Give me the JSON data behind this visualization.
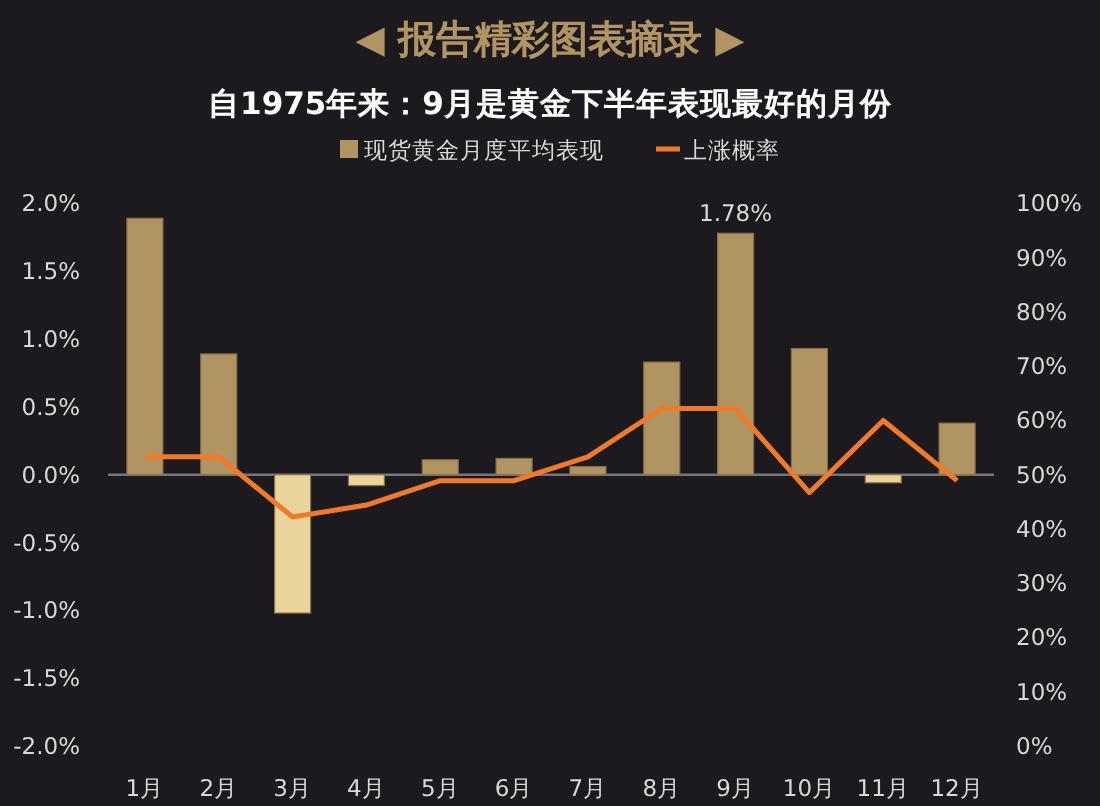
{
  "chart_data": {
    "type": "bar",
    "title": "◀ 报告精彩图表摘录 ▶",
    "subtitle": "自1975年来：9月是黄金下半年表现最好的月份",
    "categories": [
      "1月",
      "2月",
      "3月",
      "4月",
      "5月",
      "6月",
      "7月",
      "8月",
      "9月",
      "10月",
      "11月",
      "12月"
    ],
    "series": [
      {
        "name": "现货黄金月度平均表现",
        "color": "#b09462",
        "colors": [
          "#b09462",
          "#b09462",
          "#e9d59c",
          "#e9d59c",
          "#b09462",
          "#b09462",
          "#b09462",
          "#b09462",
          "#b09462",
          "#b09462",
          "#e9d59c",
          "#b09462"
        ],
        "values": [
          1.89,
          0.89,
          -1.02,
          -0.08,
          0.11,
          0.12,
          0.06,
          0.83,
          1.78,
          0.93,
          -0.06,
          0.38
        ],
        "value_labels": [
          null,
          null,
          null,
          null,
          null,
          null,
          null,
          null,
          "1.78%",
          null,
          null,
          null
        ]
      },
      {
        "name": "上涨概率",
        "type": "line",
        "axis": "y2",
        "color": "#f07a2a",
        "values": [
          53.3,
          53.3,
          42.2,
          44.4,
          48.9,
          48.9,
          53.3,
          62.2,
          62.2,
          46.7,
          60.0,
          48.9
        ]
      }
    ],
    "ylim": [
      -2,
      2
    ],
    "yticks": [
      {
        "value": 2,
        "label": "2.0%"
      },
      {
        "value": 1.5,
        "label": "1.5%"
      },
      {
        "value": 1,
        "label": "1.0%"
      },
      {
        "value": 0.5,
        "label": "0.5%"
      },
      {
        "value": 0,
        "label": "0.0%"
      },
      {
        "value": -0.5,
        "label": "-0.5%"
      },
      {
        "value": -1,
        "label": "-1.0%"
      },
      {
        "value": -1.5,
        "label": "-1.5%"
      },
      {
        "value": -2,
        "label": "-2.0%"
      }
    ],
    "y2lim": [
      0,
      100
    ],
    "y2ticks": [
      {
        "value": 100,
        "label": "100%"
      },
      {
        "value": 90,
        "label": "90%"
      },
      {
        "value": 80,
        "label": "80%"
      },
      {
        "value": 70,
        "label": "70%"
      },
      {
        "value": 60,
        "label": "60%"
      },
      {
        "value": 50,
        "label": "50%"
      },
      {
        "value": 40,
        "label": "40%"
      },
      {
        "value": 30,
        "label": "30%"
      },
      {
        "value": 20,
        "label": "20%"
      },
      {
        "value": 10,
        "label": "10%"
      },
      {
        "value": 0,
        "label": "0%"
      }
    ],
    "legend": "top"
  }
}
